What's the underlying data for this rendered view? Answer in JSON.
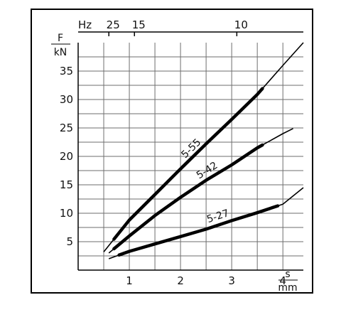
{
  "chart_data": {
    "type": "line",
    "title": "",
    "xlabel": {
      "top": "s",
      "bottom": "mm"
    },
    "ylabel": {
      "top": "F",
      "bottom": "kN"
    },
    "top_axis_label": "Hz",
    "xlim": [
      0,
      4.4
    ],
    "ylim": [
      0,
      40
    ],
    "grid": true,
    "x_ticks": [
      {
        "value": 1,
        "label": "1"
      },
      {
        "value": 2,
        "label": "2"
      },
      {
        "value": 3,
        "label": "3"
      },
      {
        "value": 4,
        "label": "4"
      }
    ],
    "y_ticks": [
      {
        "value": 5,
        "label": "5"
      },
      {
        "value": 10,
        "label": "10"
      },
      {
        "value": 15,
        "label": "15"
      },
      {
        "value": 20,
        "label": "20"
      },
      {
        "value": 25,
        "label": "25"
      },
      {
        "value": 30,
        "label": "30"
      },
      {
        "value": 35,
        "label": "35"
      }
    ],
    "top_ticks": [
      {
        "x": 0.6,
        "label": "25"
      },
      {
        "x": 1.1,
        "label": "15"
      },
      {
        "x": 3.1,
        "label": "10"
      }
    ],
    "series": [
      {
        "name": "5-55",
        "points": [
          [
            0.5,
            3.2
          ],
          [
            1.0,
            8.8
          ],
          [
            1.5,
            13.3
          ],
          [
            2.0,
            17.8
          ],
          [
            2.5,
            22.2
          ],
          [
            3.0,
            26.5
          ],
          [
            3.5,
            30.9
          ],
          [
            4.0,
            36.0
          ],
          [
            4.4,
            40.0
          ]
        ],
        "emphasis_range": [
          0.7,
          3.6
        ]
      },
      {
        "name": "5-42",
        "points": [
          [
            0.6,
            3.0
          ],
          [
            1.0,
            6.0
          ],
          [
            1.5,
            9.6
          ],
          [
            2.0,
            12.8
          ],
          [
            2.5,
            15.8
          ],
          [
            3.0,
            18.5
          ],
          [
            3.5,
            21.5
          ],
          [
            4.0,
            24.0
          ],
          [
            4.2,
            24.9
          ]
        ],
        "emphasis_range": [
          0.7,
          3.6
        ]
      },
      {
        "name": "5-27",
        "points": [
          [
            0.6,
            2.0
          ],
          [
            1.0,
            3.3
          ],
          [
            1.5,
            4.6
          ],
          [
            2.0,
            5.9
          ],
          [
            2.5,
            7.2
          ],
          [
            3.0,
            8.7
          ],
          [
            3.5,
            10.1
          ],
          [
            4.0,
            11.6
          ],
          [
            4.4,
            14.5
          ]
        ],
        "emphasis_range": [
          0.8,
          3.9
        ]
      }
    ]
  }
}
